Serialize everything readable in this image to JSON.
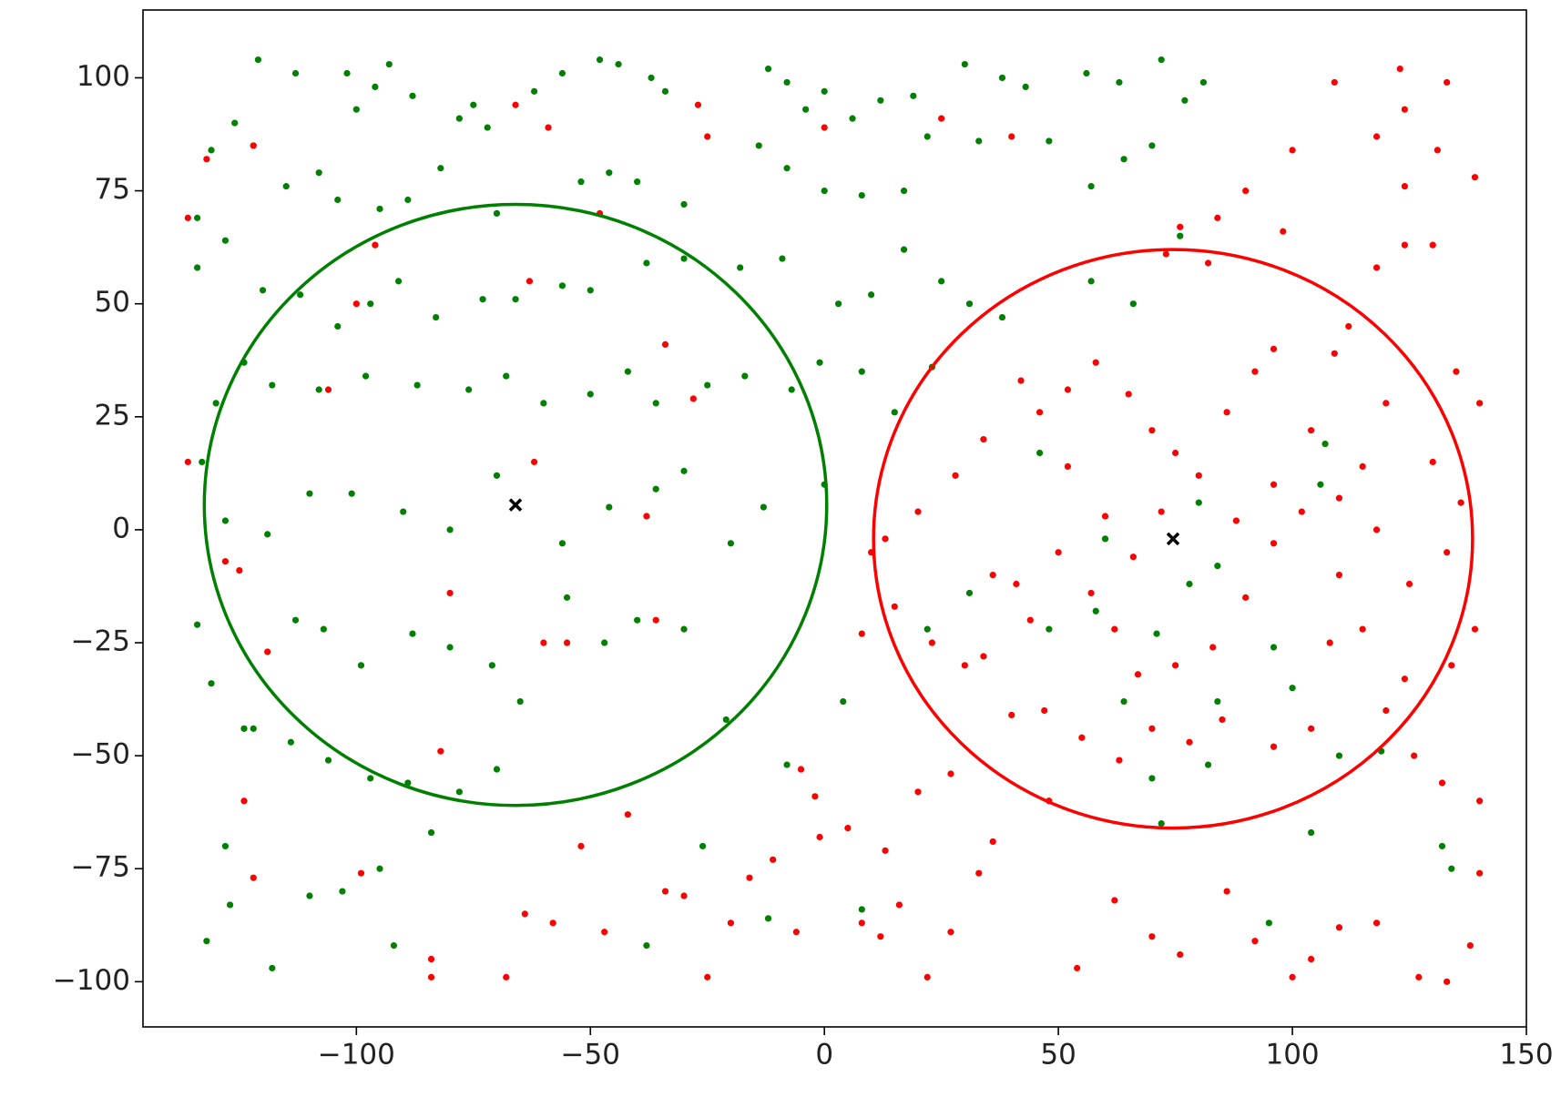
{
  "chart_data": {
    "type": "scatter",
    "xlim": [
      -145.6,
      150
    ],
    "ylim": [
      -110,
      115
    ],
    "xticks": [
      {
        "value": -100,
        "label": "−100"
      },
      {
        "value": -50,
        "label": "−50"
      },
      0,
      50,
      100,
      150
    ],
    "yticks": [
      {
        "value": -100,
        "label": "−100"
      },
      {
        "value": -75,
        "label": "−75"
      },
      {
        "value": -50,
        "label": "−50"
      },
      {
        "value": -25,
        "label": "−25"
      },
      0,
      25,
      50,
      75,
      100
    ],
    "series": [
      {
        "color": "#008000",
        "marker": "dot",
        "x": [
          -121,
          -113,
          -102,
          -93,
          -96,
          -100,
          -88,
          -78,
          -75,
          -72,
          -62,
          -56,
          -48,
          -44,
          -37,
          -34,
          -12,
          -8,
          -4,
          0,
          6,
          12,
          19,
          30,
          38,
          43,
          56,
          63,
          72,
          77,
          81,
          -131,
          -126,
          -122,
          -115,
          -108,
          -104,
          -95,
          -89,
          -82,
          -70,
          -52,
          -46,
          -40,
          -30,
          -14,
          -8,
          0,
          8,
          17,
          22,
          33,
          48,
          57,
          64,
          70,
          -134,
          -134,
          -128,
          -120,
          -112,
          -104,
          -97,
          -91,
          -83,
          -73,
          -66,
          -56,
          -50,
          -38,
          -30,
          -18,
          -9,
          3,
          10,
          17,
          25,
          31,
          38,
          -130,
          -124,
          -118,
          -108,
          -98,
          -87,
          -76,
          -68,
          -60,
          -50,
          -42,
          -36,
          -25,
          -17,
          -7,
          -1,
          8,
          15,
          23,
          -133,
          -128,
          -119,
          -110,
          -101,
          -90,
          -80,
          -70,
          -56,
          -46,
          -36,
          -30,
          -20,
          -13,
          0,
          -134,
          -131,
          -124,
          -113,
          -107,
          -99,
          -88,
          -80,
          -71,
          -65,
          -55,
          -47,
          -40,
          -30,
          -21,
          -122,
          -114,
          -106,
          -97,
          -89,
          -78,
          -70,
          -128,
          -132,
          -127,
          -118,
          -110,
          -103,
          -95,
          -92,
          -84,
          -38,
          -26,
          -12,
          -8,
          4,
          8,
          72,
          78,
          82,
          84,
          95,
          100,
          104,
          106,
          110,
          119,
          132,
          134,
          60,
          71,
          64,
          70,
          80,
          58,
          107,
          96,
          48,
          31,
          22,
          84,
          57,
          66,
          76,
          46
        ],
        "values": [
          104,
          101,
          101,
          103,
          98,
          93,
          96,
          91,
          94,
          89,
          97,
          101,
          104,
          103,
          100,
          97,
          102,
          99,
          93,
          97,
          91,
          95,
          96,
          103,
          100,
          98,
          101,
          99,
          104,
          95,
          99,
          84,
          90,
          85,
          76,
          79,
          73,
          71,
          73,
          80,
          70,
          77,
          79,
          77,
          72,
          85,
          80,
          75,
          74,
          75,
          87,
          86,
          86,
          76,
          82,
          85,
          69,
          58,
          64,
          53,
          52,
          45,
          50,
          55,
          47,
          51,
          51,
          54,
          53,
          59,
          60,
          58,
          60,
          50,
          52,
          62,
          55,
          50,
          47,
          28,
          37,
          32,
          31,
          34,
          32,
          31,
          34,
          28,
          30,
          35,
          28,
          32,
          34,
          31,
          37,
          35,
          26,
          36,
          15,
          2,
          -1,
          8,
          8,
          4,
          0,
          12,
          -3,
          5,
          9,
          13,
          -3,
          5,
          10,
          -21,
          -34,
          -44,
          -20,
          -22,
          -30,
          -23,
          -26,
          -30,
          -38,
          -15,
          -25,
          -20,
          -22,
          -42,
          -44,
          -47,
          -51,
          -55,
          -56,
          -58,
          -53,
          -70,
          -91,
          -83,
          -97,
          -81,
          -80,
          -75,
          -92,
          -67,
          -92,
          -70,
          -86,
          -52,
          -38,
          -84,
          -65,
          -12,
          -52,
          -38,
          -87,
          -35,
          -67,
          10,
          -50,
          -49,
          -70,
          -75,
          -2,
          -23,
          -38,
          -55,
          6,
          -18,
          19,
          -26,
          -22,
          -14,
          -22,
          -8,
          55,
          50,
          65,
          17
        ]
      },
      {
        "color": "#ff0000",
        "marker": "dot",
        "x": [
          -66,
          -59,
          -48,
          -27,
          -25,
          0,
          25,
          40,
          -122,
          -132,
          -136,
          -100,
          -96,
          -63,
          -34,
          -28,
          -106,
          -136,
          -62,
          -38,
          -128,
          -125,
          -119,
          -80,
          -60,
          -55,
          -36,
          -82,
          -124,
          -122,
          -99,
          -84,
          -84,
          -68,
          -64,
          -58,
          -52,
          -47,
          -42,
          -34,
          -30,
          -25,
          -20,
          -16,
          -11,
          -5,
          -2,
          -1,
          5,
          8,
          13,
          12,
          16,
          22,
          27,
          33,
          36,
          48,
          54,
          62,
          70,
          76,
          86,
          92,
          100,
          104,
          110,
          118,
          127,
          133,
          138,
          140,
          140,
          139,
          133,
          124,
          130,
          135,
          140,
          139,
          131,
          124,
          133,
          123,
          109,
          100,
          118,
          124,
          130,
          124,
          118,
          112,
          109,
          98,
          90,
          84,
          82,
          76,
          73,
          96,
          92,
          86,
          75,
          70,
          65,
          58,
          52,
          46,
          42,
          34,
          28,
          20,
          13,
          10,
          15,
          23,
          30,
          34,
          41,
          50,
          57,
          62,
          67,
          75,
          83,
          90,
          96,
          102,
          110,
          115,
          120,
          126,
          132,
          104,
          96,
          85,
          78,
          70,
          63,
          55,
          47,
          40,
          36,
          44,
          52,
          60,
          66,
          72,
          80,
          88,
          96,
          104,
          110,
          118,
          125,
          136,
          134,
          115,
          120,
          108,
          27,
          8,
          20,
          -6
        ],
        "values": [
          94,
          89,
          70,
          94,
          87,
          89,
          91,
          87,
          85,
          82,
          69,
          50,
          63,
          55,
          41,
          29,
          31,
          15,
          15,
          3,
          -7,
          -9,
          -27,
          -14,
          -25,
          -25,
          -20,
          -49,
          -60,
          -77,
          -76,
          -95,
          -99,
          -99,
          -85,
          -87,
          -70,
          -89,
          -63,
          -80,
          -81,
          -99,
          -87,
          -77,
          -73,
          -53,
          -59,
          -68,
          -66,
          -87,
          -71,
          -90,
          -83,
          -99,
          -89,
          -76,
          -69,
          -60,
          -97,
          -82,
          -90,
          -94,
          -80,
          -91,
          -99,
          -95,
          -88,
          -87,
          -99,
          -100,
          -92,
          -76,
          -60,
          -22,
          -5,
          -33,
          15,
          35,
          28,
          78,
          84,
          93,
          99,
          102,
          99,
          84,
          87,
          76,
          63,
          63,
          58,
          45,
          39,
          66,
          75,
          69,
          59,
          67,
          61,
          40,
          35,
          26,
          17,
          22,
          30,
          37,
          31,
          26,
          33,
          20,
          12,
          4,
          -2,
          -5,
          -17,
          -25,
          -30,
          -28,
          -12,
          -5,
          -14,
          -22,
          -32,
          -30,
          -26,
          -15,
          -3,
          4,
          -10,
          -22,
          -40,
          -50,
          -56,
          -44,
          -48,
          -42,
          -47,
          -44,
          -51,
          -46,
          -40,
          -41,
          -10,
          -20,
          14,
          3,
          -6,
          4,
          12,
          2,
          10,
          22,
          7,
          0,
          -12,
          6,
          -30,
          14,
          28,
          -25,
          -54,
          -23,
          -58,
          -89
        ]
      },
      {
        "color": "#000000",
        "marker": "x",
        "x": [
          -66,
          74.5
        ],
        "values": [
          5.5,
          -2
        ]
      }
    ],
    "circles": [
      {
        "x": -66,
        "y": 5.5,
        "r": 66.5,
        "color": "#008000"
      },
      {
        "x": 74.5,
        "y": -2,
        "r": 64,
        "color": "#ff0000"
      }
    ]
  }
}
